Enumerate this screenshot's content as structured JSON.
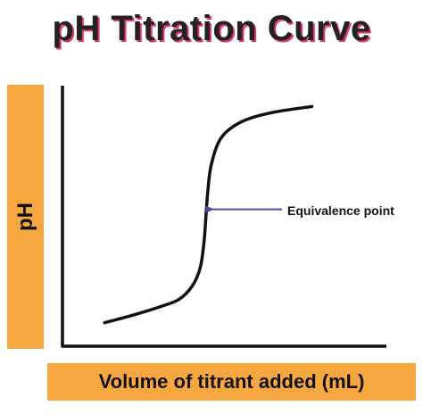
{
  "chart_data": {
    "type": "line",
    "title": "pH Titration Curve",
    "xlabel": "Volume of titrant added (mL)",
    "ylabel": "pH",
    "xlim": [
      0,
      100
    ],
    "ylim": [
      0,
      100
    ],
    "grid": false,
    "legend": "none",
    "series": [
      {
        "values": [
          [
            13,
            9
          ],
          [
            22,
            12
          ],
          [
            31,
            15.5
          ],
          [
            36,
            18
          ],
          [
            40,
            23
          ],
          [
            42.5,
            30
          ],
          [
            43.7,
            40
          ],
          [
            44.3,
            50
          ],
          [
            44.9,
            60
          ],
          [
            46,
            70
          ],
          [
            49,
            80
          ],
          [
            55,
            86
          ],
          [
            64,
            89.5
          ],
          [
            77,
            92
          ]
        ]
      }
    ],
    "annotations": [
      {
        "text": "Equivalence point",
        "x": 45,
        "y": 52
      }
    ],
    "colors": {
      "curve": "#111111",
      "arrow": "#4a4aa8",
      "label_bars": "#f7a73f",
      "title_shadow": "#e33a6a"
    }
  }
}
